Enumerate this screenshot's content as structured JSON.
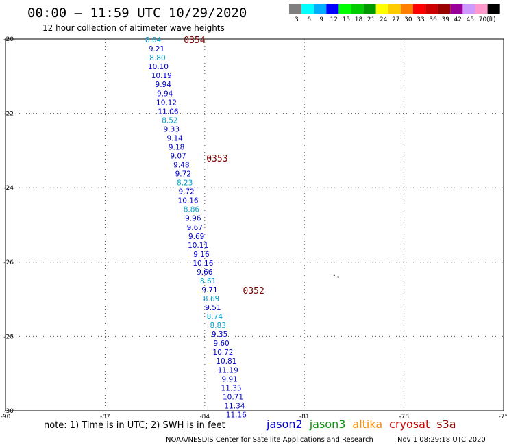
{
  "header": {
    "title": "00:00 – 11:59 UTC 10/29/2020",
    "subtitle": "12 hour collection of altimeter wave heights"
  },
  "legend": {
    "unit": "(ft)",
    "swatches": [
      {
        "label": "3",
        "color": "#7f7f7f"
      },
      {
        "label": "6",
        "color": "#00ffff"
      },
      {
        "label": "9",
        "color": "#00b0ff"
      },
      {
        "label": "12",
        "color": "#0000ff"
      },
      {
        "label": "15",
        "color": "#00ff00"
      },
      {
        "label": "18",
        "color": "#00cc00"
      },
      {
        "label": "21",
        "color": "#009900"
      },
      {
        "label": "24",
        "color": "#ffff00"
      },
      {
        "label": "27",
        "color": "#ffcc00"
      },
      {
        "label": "30",
        "color": "#ff8000"
      },
      {
        "label": "33",
        "color": "#ff0000"
      },
      {
        "label": "36",
        "color": "#cc0000"
      },
      {
        "label": "39",
        "color": "#990000"
      },
      {
        "label": "42",
        "color": "#990099"
      },
      {
        "label": "45",
        "color": "#cc99ff"
      },
      {
        "label": "70",
        "color": "#ff99cc"
      },
      {
        "label": "",
        "color": "#000000"
      }
    ]
  },
  "axes": {
    "lon_range": [
      -90,
      -75
    ],
    "lat_range": [
      -30,
      -20
    ],
    "lon_ticks": [
      "-90",
      "-87",
      "-84",
      "-81",
      "-78",
      "-75"
    ],
    "lat_ticks": [
      "-20",
      "-22",
      "-24",
      "-26",
      "-28",
      "-30"
    ]
  },
  "colors": {
    "jason2": "#0000cc",
    "jason3": "#009900",
    "altika": "#ff8c00",
    "cryosat": "#cc0000",
    "s3a": "#990000",
    "light_value": "#00a0d0",
    "time_label": "#7a0000"
  },
  "track": {
    "satellite": "jason2",
    "points": [
      {
        "lon": -85.55,
        "lat": -20.02,
        "swh": "8.04",
        "shade": "light"
      },
      {
        "lon": -85.45,
        "lat": -20.26,
        "swh": "9.21",
        "shade": "dark"
      },
      {
        "lon": -85.42,
        "lat": -20.5,
        "swh": "8.80",
        "shade": "light"
      },
      {
        "lon": -85.4,
        "lat": -20.74,
        "swh": "10.10",
        "shade": "dark"
      },
      {
        "lon": -85.3,
        "lat": -20.98,
        "swh": "10.19",
        "shade": "dark"
      },
      {
        "lon": -85.25,
        "lat": -21.22,
        "swh": "9.94",
        "shade": "dark"
      },
      {
        "lon": -85.2,
        "lat": -21.46,
        "swh": "9.94",
        "shade": "dark"
      },
      {
        "lon": -85.15,
        "lat": -21.7,
        "swh": "10.12",
        "shade": "dark"
      },
      {
        "lon": -85.1,
        "lat": -21.94,
        "swh": "11.06",
        "shade": "dark"
      },
      {
        "lon": -85.05,
        "lat": -22.18,
        "swh": "8.52",
        "shade": "light"
      },
      {
        "lon": -85.0,
        "lat": -22.42,
        "swh": "9.33",
        "shade": "dark"
      },
      {
        "lon": -84.9,
        "lat": -22.66,
        "swh": "9.14",
        "shade": "dark"
      },
      {
        "lon": -84.85,
        "lat": -22.9,
        "swh": "9.18",
        "shade": "dark"
      },
      {
        "lon": -84.8,
        "lat": -23.14,
        "swh": "9.07",
        "shade": "dark"
      },
      {
        "lon": -84.7,
        "lat": -23.38,
        "swh": "9.48",
        "shade": "dark"
      },
      {
        "lon": -84.65,
        "lat": -23.62,
        "swh": "9.72",
        "shade": "dark"
      },
      {
        "lon": -84.6,
        "lat": -23.86,
        "swh": "8.23",
        "shade": "light"
      },
      {
        "lon": -84.55,
        "lat": -24.1,
        "swh": "9.72",
        "shade": "dark"
      },
      {
        "lon": -84.5,
        "lat": -24.34,
        "swh": "10.16",
        "shade": "dark"
      },
      {
        "lon": -84.4,
        "lat": -24.58,
        "swh": "8.86",
        "shade": "light"
      },
      {
        "lon": -84.35,
        "lat": -24.82,
        "swh": "9.96",
        "shade": "dark"
      },
      {
        "lon": -84.3,
        "lat": -25.06,
        "swh": "9.67",
        "shade": "dark"
      },
      {
        "lon": -84.25,
        "lat": -25.3,
        "swh": "9.69",
        "shade": "dark"
      },
      {
        "lon": -84.2,
        "lat": -25.54,
        "swh": "10.11",
        "shade": "dark"
      },
      {
        "lon": -84.1,
        "lat": -25.78,
        "swh": "9.16",
        "shade": "dark"
      },
      {
        "lon": -84.05,
        "lat": -26.02,
        "swh": "10.16",
        "shade": "dark"
      },
      {
        "lon": -84.0,
        "lat": -26.26,
        "swh": "9.66",
        "shade": "dark"
      },
      {
        "lon": -83.9,
        "lat": -26.5,
        "swh": "8.61",
        "shade": "light"
      },
      {
        "lon": -83.85,
        "lat": -26.74,
        "swh": "9.71",
        "shade": "dark"
      },
      {
        "lon": -83.8,
        "lat": -26.98,
        "swh": "8.69",
        "shade": "light"
      },
      {
        "lon": -83.75,
        "lat": -27.22,
        "swh": "9.51",
        "shade": "dark"
      },
      {
        "lon": -83.7,
        "lat": -27.46,
        "swh": "8.74",
        "shade": "light"
      },
      {
        "lon": -83.6,
        "lat": -27.7,
        "swh": "8.83",
        "shade": "light"
      },
      {
        "lon": -83.55,
        "lat": -27.94,
        "swh": "9.35",
        "shade": "dark"
      },
      {
        "lon": -83.5,
        "lat": -28.18,
        "swh": "9.60",
        "shade": "dark"
      },
      {
        "lon": -83.45,
        "lat": -28.42,
        "swh": "10.72",
        "shade": "dark"
      },
      {
        "lon": -83.35,
        "lat": -28.66,
        "swh": "10.81",
        "shade": "dark"
      },
      {
        "lon": -83.3,
        "lat": -28.9,
        "swh": "11.19",
        "shade": "dark"
      },
      {
        "lon": -83.25,
        "lat": -29.14,
        "swh": "9.91",
        "shade": "dark"
      },
      {
        "lon": -83.2,
        "lat": -29.38,
        "swh": "11.35",
        "shade": "dark"
      },
      {
        "lon": -83.15,
        "lat": -29.62,
        "swh": "10.71",
        "shade": "dark"
      },
      {
        "lon": -83.1,
        "lat": -29.86,
        "swh": "11.34",
        "shade": "dark"
      },
      {
        "lon": -83.05,
        "lat": -30.1,
        "swh": "11.16",
        "shade": "dark"
      }
    ],
    "time_labels": [
      {
        "lon": -84.63,
        "lat": -20.02,
        "text": "0354"
      },
      {
        "lon": -83.95,
        "lat": -23.2,
        "text": "0353"
      },
      {
        "lon": -82.85,
        "lat": -26.76,
        "text": "0352"
      }
    ]
  },
  "land_marks": [
    {
      "lon": -80.1,
      "lat": -26.35
    },
    {
      "lon": -79.98,
      "lat": -26.4
    }
  ],
  "footer": {
    "note": "note:  1) Time is in UTC;  2) SWH is in feet",
    "satellites": [
      {
        "name": "jason2",
        "color_key": "jason2"
      },
      {
        "name": "jason3",
        "color_key": "jason3"
      },
      {
        "name": "altika",
        "color_key": "altika"
      },
      {
        "name": "cryosat",
        "color_key": "cryosat"
      },
      {
        "name": "s3a",
        "color_key": "s3a"
      }
    ],
    "credit": "NOAA/NESDIS Center for Satellite Applications and Research",
    "timestamp": "Nov  1 08:29:18 UTC 2020"
  }
}
